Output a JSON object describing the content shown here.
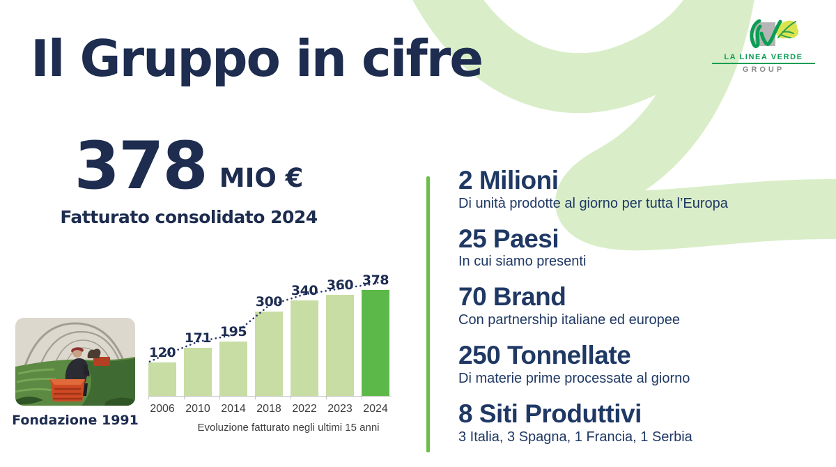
{
  "slide": {
    "title": "Il Gruppo in cifre"
  },
  "logo": {
    "line1": "LA LINEA VERDE",
    "line2": "GROUP"
  },
  "revenue": {
    "value": "378",
    "unit": "MIO €",
    "caption": "Fatturato consolidato 2024"
  },
  "founding": {
    "caption": "Fondazione 1991"
  },
  "chart_data": {
    "type": "bar",
    "title": "Evoluzione fatturato negli ultimi 15 anni",
    "categories": [
      "2006",
      "2010",
      "2014",
      "2018",
      "2022",
      "2023",
      "2024"
    ],
    "values": [
      120,
      171,
      195,
      300,
      340,
      360,
      378
    ],
    "unit": "MIO €",
    "highlight_index": 6,
    "bar_color": "#c7dda3",
    "highlight_color": "#5cb949",
    "trend_style": "dotted",
    "trend_color": "#24366b",
    "ylim": [
      0,
      400
    ],
    "grid": false,
    "legend": false
  },
  "stats": [
    {
      "value": "2 Milioni",
      "description": "Di unità prodotte al giorno per tutta l’Europa"
    },
    {
      "value": "25 Paesi",
      "description": "In cui siamo presenti"
    },
    {
      "value": "70 Brand",
      "description": "Con partnership italiane ed europee"
    },
    {
      "value": "250 Tonnellate",
      "description": "Di materie prime processate al giorno"
    },
    {
      "value": "8 Siti Produttivi",
      "description": "3 Italia, 3 Spagna, 1 Francia, 1 Serbia"
    }
  ],
  "colors": {
    "navy": "#1d2c4f",
    "heading_navy": "#1f3864",
    "accent_green": "#6abf4a",
    "swoosh_green": "#d9eec8",
    "logo_green": "#0a9e53",
    "logo_gray": "#b5b5b5",
    "leaf_yellow": "#d9e44f"
  }
}
